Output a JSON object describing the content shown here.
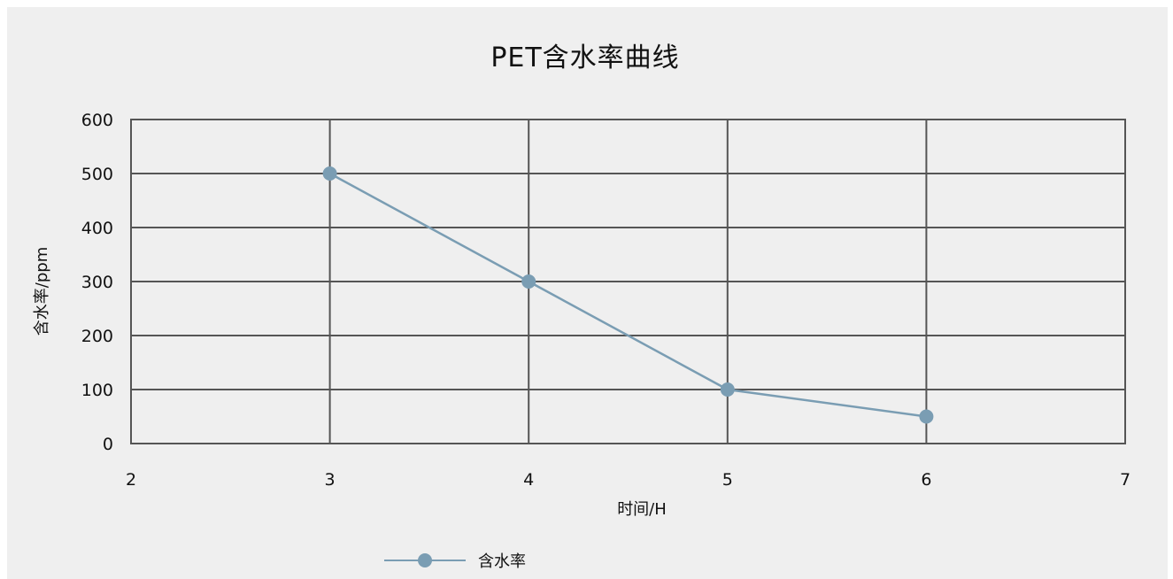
{
  "chart_data": {
    "type": "line",
    "title": "PET含水率曲线",
    "xlabel": "时间/H",
    "ylabel": "含水率/ppm",
    "xlim": [
      2,
      7
    ],
    "ylim": [
      0,
      600
    ],
    "x_ticks": [
      2,
      3,
      4,
      5,
      6,
      7
    ],
    "y_ticks": [
      0,
      100,
      200,
      300,
      400,
      500,
      600
    ],
    "grid": true,
    "legend_position": "bottom",
    "series": [
      {
        "name": "含水率",
        "color": "#7a9db3",
        "x": [
          3,
          4,
          5,
          6
        ],
        "y": [
          500,
          300,
          100,
          50
        ]
      }
    ]
  }
}
